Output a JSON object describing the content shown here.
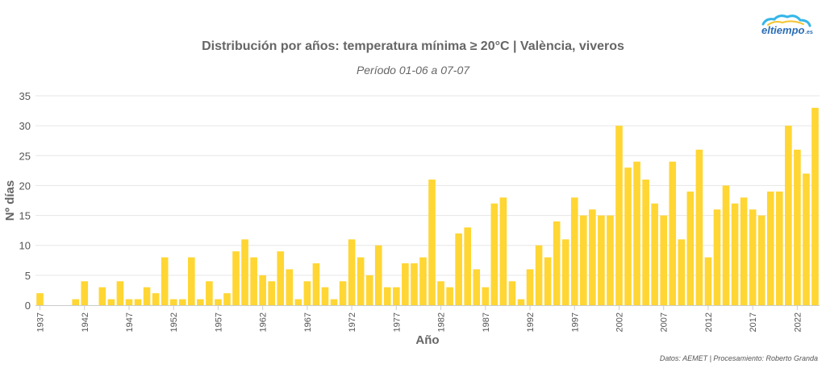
{
  "logo": {
    "text": "eltiempo",
    "suffix": ".es"
  },
  "credits": "Datos: AEMET | Procesamiento: Roberto Granda",
  "colors": {
    "bar": "#ffd633",
    "grid": "#e6e6e6",
    "axis": "#cccccc"
  },
  "chart_data": {
    "type": "bar",
    "title": "Distribución por años: temperatura mínima ≥ 20°C | València, viveros",
    "subtitle": "Período 01-06 a 07-07",
    "xlabel": "Año",
    "ylabel": "Nº días",
    "ylim": [
      0,
      35
    ],
    "yticks": [
      0,
      5,
      10,
      15,
      20,
      25,
      30,
      35
    ],
    "xtick_labels": [
      "1937",
      "1942",
      "1947",
      "1952",
      "1957",
      "1962",
      "1967",
      "1972",
      "1977",
      "1982",
      "1987",
      "1992",
      "1997",
      "2002",
      "2007",
      "2012",
      "2017",
      "2022"
    ],
    "grid": true,
    "legend": "none",
    "x": [
      1937,
      1938,
      1939,
      1940,
      1941,
      1942,
      1943,
      1944,
      1945,
      1946,
      1947,
      1948,
      1949,
      1950,
      1951,
      1952,
      1953,
      1954,
      1955,
      1956,
      1957,
      1958,
      1959,
      1960,
      1961,
      1962,
      1963,
      1964,
      1965,
      1966,
      1967,
      1968,
      1969,
      1970,
      1971,
      1972,
      1973,
      1974,
      1975,
      1976,
      1977,
      1978,
      1979,
      1980,
      1981,
      1982,
      1983,
      1984,
      1985,
      1986,
      1987,
      1988,
      1989,
      1990,
      1991,
      1992,
      1993,
      1994,
      1995,
      1996,
      1997,
      1998,
      1999,
      2000,
      2001,
      2002,
      2003,
      2004,
      2005,
      2006,
      2007,
      2008,
      2009,
      2010,
      2011,
      2012,
      2013,
      2014,
      2015,
      2016,
      2017,
      2018,
      2019,
      2020,
      2021,
      2022,
      2023,
      2024
    ],
    "values": [
      2,
      0,
      0,
      0,
      1,
      4,
      0,
      3,
      1,
      4,
      1,
      1,
      3,
      2,
      8,
      1,
      1,
      8,
      1,
      4,
      1,
      2,
      9,
      11,
      8,
      5,
      4,
      9,
      6,
      1,
      4,
      7,
      3,
      1,
      4,
      11,
      8,
      5,
      10,
      3,
      3,
      7,
      7,
      8,
      21,
      4,
      3,
      12,
      13,
      6,
      3,
      17,
      18,
      4,
      1,
      6,
      10,
      8,
      14,
      11,
      18,
      15,
      16,
      15,
      15,
      30,
      23,
      24,
      21,
      17,
      15,
      24,
      11,
      19,
      26,
      8,
      16,
      20,
      17,
      18,
      16,
      15,
      19,
      19,
      30,
      26,
      22,
      33
    ]
  }
}
